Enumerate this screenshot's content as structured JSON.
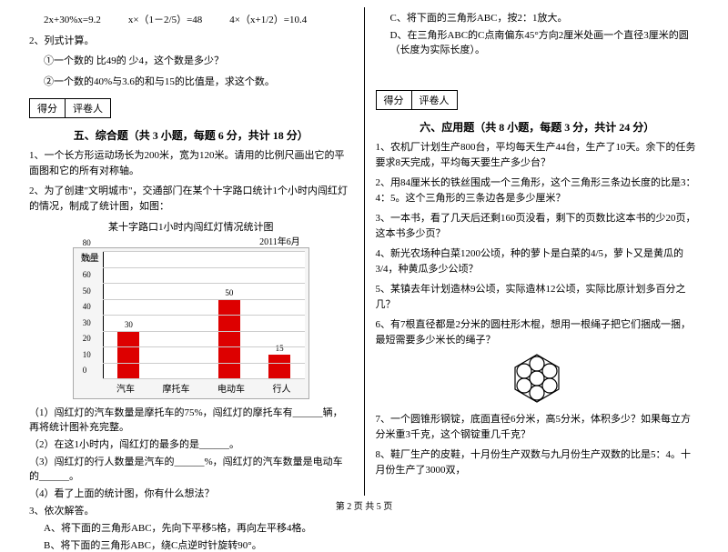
{
  "left": {
    "eq1": "2x+30%x=9.2",
    "eq2": "x×（1－2/5）=48",
    "eq3": "4×（x+1/2）=10.4",
    "q2_title": "2、列式计算。",
    "q2_a": "①一个数的 比49的 少4，这个数是多少？",
    "q2_b": "②一个数的40%与3.6的和与15的比值是，求这个数。",
    "score_a": "得分",
    "score_b": "评卷人",
    "sec5_title": "五、综合题（共 3 小题，每题 6 分，共计 18 分）",
    "s5_1": "1、一个长方形运动场长为200米，宽为120米。请用的比例尺画出它的平面图和它的所有对称轴。",
    "s5_2": "2、为了创建\"文明城市\"，交通部门在某个十字路口统计1个小时内闯红灯的情况，制成了统计图，如图：",
    "chart_title": "某十字路口1小时内闯红灯情况统计图",
    "chart_date": "2011年6月",
    "y_axis_label": "数量",
    "ylim": [
      0,
      80
    ],
    "ytick_step": 10,
    "bar_color": "#d00",
    "grid_color": "#cccccc",
    "chart_bg": "#f5f5f5",
    "categories": [
      "汽车",
      "摩托车",
      "电动车",
      "行人"
    ],
    "values": [
      30,
      null,
      50,
      15
    ],
    "s5_2_1": "（1）闯红灯的汽车数量是摩托车的75%，闯红灯的摩托车有______辆，再将统计图补充完整。",
    "s5_2_2": "（2）在这1小时内，闯红灯的最多的是______。",
    "s5_2_3": "（3）闯红灯的行人数量是汽车的______%，闯红灯的汽车数量是电动车的______。",
    "s5_2_4": "（4）看了上面的统计图，你有什么想法？",
    "s5_3": "3、依次解答。",
    "s5_3a": "A、将下面的三角形ABC，先向下平移5格，再向左平移4格。",
    "s5_3b": "B、将下面的三角形ABC，绕C点逆时针旋转90°。"
  },
  "right": {
    "s5_3c": "C、将下面的三角形ABC，按2：1放大。",
    "s5_3d": "D、在三角形ABC的C点南偏东45°方向2厘米处画一个直径3厘米的圆（长度为实际长度）。",
    "score_a": "得分",
    "score_b": "评卷人",
    "sec6_title": "六、应用题（共 8 小题，每题 3 分，共计 24 分）",
    "s6_1": "1、农机厂计划生产800台，平均每天生产44台，生产了10天。余下的任务要求8天完成，平均每天要生产多少台？",
    "s6_2": "2、用84厘米长的铁丝围成一个三角形，这个三角形三条边长度的比是3：4：5。这个三角形的三条边各是多少厘米？",
    "s6_3": "3、一本书，看了几天后还剩160页没看，剩下的页数比这本书的少20页，这本书多少页？",
    "s6_4": "4、新光农场种白菜1200公顷，种的萝卜是白菜的4/5，萝卜又是黄瓜的3/4，种黄瓜多少公顷？",
    "s6_5": "5、某镇去年计划造林9公顷，实际造林12公顷，实际比原计划多百分之几？",
    "s6_6": "6、有7根直径都是2分米的圆柱形木棍，想用一根绳子把它们捆成一捆，最短需要多少米长的绳子？",
    "s6_7": "7、一个圆锥形钢锭，底面直径6分米，高5分米，体积多少？如果每立方分米重3千克，这个钢锭重几千克？",
    "s6_8": "8、鞋厂生产的皮鞋，十月份生产双数与九月份生产双数的比是5：4。十月份生产了3000双，"
  },
  "footer": "第 2 页 共 5 页"
}
